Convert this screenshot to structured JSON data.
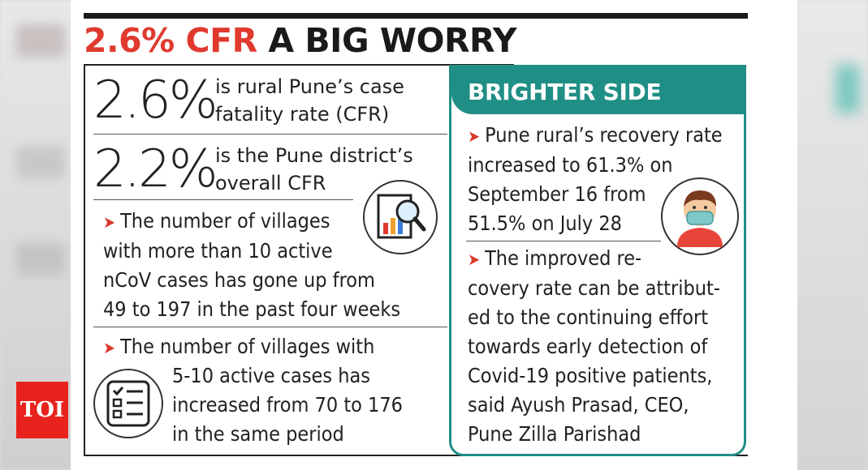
{
  "title": {
    "red": "2.6% CFR",
    "black": " A BIG WORRY"
  },
  "stats": [
    {
      "big": "2.6%",
      "line1": "is rural Pune’s case",
      "line2": "fatality rate (CFR)"
    },
    {
      "big": "2.2%",
      "line1": "is the Pune district’s",
      "line2": "overall CFR"
    }
  ],
  "bullets_left": [
    {
      "lines": [
        "The number of villages",
        "with more than 10 active",
        "nCoV cases has gone up from",
        "49 to 197 in the past four weeks"
      ]
    },
    {
      "lines": [
        "The number of villages with",
        "5-10 active cases has",
        "increased from 70 to 176",
        "in the same period"
      ]
    }
  ],
  "side": {
    "heading": "BRIGHTER SIDE",
    "bullet1": [
      "Pune rural’s recovery rate",
      "increased to 61.3% on",
      "September 16 from",
      "51.5% on July 28"
    ],
    "bullet2": [
      "The improved re-",
      "covery rate can be attribut-",
      "ed to the continuing effort",
      "towards early detection of",
      "Covid-19 positive patients,",
      "said Ayush Prasad, CEO,",
      "Pune Zilla Parishad"
    ]
  },
  "logo": "TOI",
  "icons": [
    "chart-magnifier-icon",
    "checklist-icon",
    "masked-person-icon",
    "arrow-bullet-icon"
  ],
  "colors": {
    "accent_red": "#e03a2f",
    "teal": "#1f8f86",
    "logo_red": "#e8231d"
  }
}
